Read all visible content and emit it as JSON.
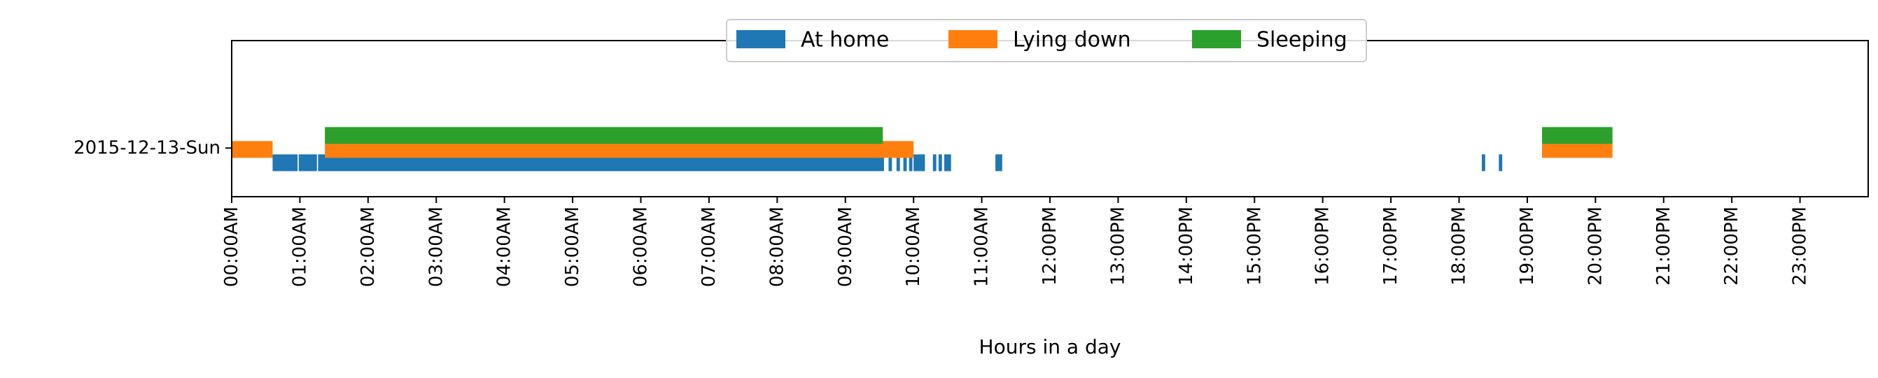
{
  "chart_data": {
    "type": "timeline",
    "title": "",
    "xlabel": "Hours in a day",
    "ylabel": "",
    "xlim": [
      0,
      24
    ],
    "x_ticks": [
      "00:00AM",
      "01:00AM",
      "02:00AM",
      "03:00AM",
      "04:00AM",
      "05:00AM",
      "06:00AM",
      "07:00AM",
      "08:00AM",
      "09:00AM",
      "10:00AM",
      "11:00AM",
      "12:00PM",
      "13:00PM",
      "14:00PM",
      "15:00PM",
      "16:00PM",
      "17:00PM",
      "18:00PM",
      "19:00PM",
      "20:00PM",
      "21:00PM",
      "22:00PM",
      "23:00PM"
    ],
    "categories": [
      "2015-12-13-Sun"
    ],
    "legend_position": "top-center",
    "series": [
      {
        "name": "At home",
        "color": "#1f77b4",
        "intervals": [
          [
            "2015-12-13-Sun",
            "00:36AM",
            "00:58AM"
          ],
          [
            "2015-12-13-Sun",
            "00:59AM",
            "01:15AM"
          ],
          [
            "2015-12-13-Sun",
            "01:16AM",
            "09:34AM"
          ],
          [
            "2015-12-13-Sun",
            "09:38AM",
            "09:41AM"
          ],
          [
            "2015-12-13-Sun",
            "09:45AM",
            "09:48AM"
          ],
          [
            "2015-12-13-Sun",
            "09:51AM",
            "09:54AM"
          ],
          [
            "2015-12-13-Sun",
            "09:56AM",
            "09:59AM"
          ],
          [
            "2015-12-13-Sun",
            "10:00AM",
            "10:10AM"
          ],
          [
            "2015-12-13-Sun",
            "10:17AM",
            "10:20AM"
          ],
          [
            "2015-12-13-Sun",
            "10:22AM",
            "10:25AM"
          ],
          [
            "2015-12-13-Sun",
            "10:27AM",
            "10:33AM"
          ],
          [
            "2015-12-13-Sun",
            "11:12AM",
            "11:18AM"
          ],
          [
            "2015-12-13-Sun",
            "18:20PM",
            "18:23PM"
          ],
          [
            "2015-12-13-Sun",
            "18:35PM",
            "18:38PM"
          ]
        ]
      },
      {
        "name": "Lying down",
        "color": "#ff7f0e",
        "intervals": [
          [
            "2015-12-13-Sun",
            "00:00AM",
            "00:36AM"
          ],
          [
            "2015-12-13-Sun",
            "01:22AM",
            "10:00AM"
          ],
          [
            "2015-12-13-Sun",
            "19:13PM",
            "20:15PM"
          ]
        ]
      },
      {
        "name": "Sleeping",
        "color": "#2ca02c",
        "intervals": [
          [
            "2015-12-13-Sun",
            "01:22AM",
            "09:33AM"
          ],
          [
            "2015-12-13-Sun",
            "19:13PM",
            "20:15PM"
          ]
        ]
      }
    ]
  }
}
